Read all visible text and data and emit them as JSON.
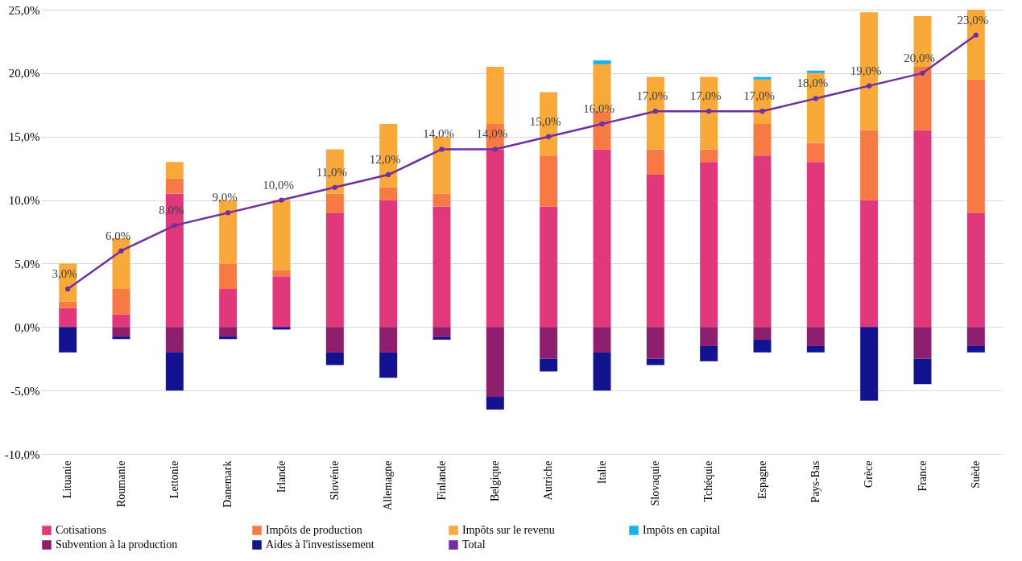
{
  "chart_data": {
    "type": "bar",
    "stacked": true,
    "grid": "y",
    "legend": "bottom",
    "categories": [
      "Lituanie",
      "Roumanie",
      "Lettonie",
      "Danemark",
      "Irlande",
      "Slovénie",
      "Allemagne",
      "Finlande",
      "Belgique",
      "Autriche",
      "Italie",
      "Slovaquie",
      "Tchéquie",
      "Espagne",
      "Pays-Bas",
      "Grèce",
      "France",
      "Suède"
    ],
    "series": [
      {
        "name": "Cotisations",
        "color": "#e0387a",
        "values": [
          1.5,
          1.0,
          10.5,
          3.0,
          4.0,
          9.0,
          10.0,
          9.5,
          14.0,
          9.5,
          14.0,
          12.0,
          13.0,
          13.5,
          13.0,
          10.0,
          15.5,
          9.0
        ]
      },
      {
        "name": "Impôts de production",
        "color": "#f77a45",
        "values": [
          0.5,
          2.0,
          1.2,
          2.0,
          0.5,
          1.5,
          1.0,
          1.0,
          2.0,
          4.0,
          3.0,
          2.0,
          1.0,
          2.5,
          1.5,
          5.5,
          5.0,
          10.5
        ]
      },
      {
        "name": "Impôts sur le revenu",
        "color": "#f9a93a",
        "values": [
          3.0,
          4.0,
          1.3,
          5.0,
          5.5,
          3.5,
          5.0,
          4.5,
          4.5,
          5.0,
          3.7,
          5.7,
          5.7,
          3.5,
          5.5,
          9.3,
          4.0,
          5.5
        ]
      },
      {
        "name": "Impôts en capital",
        "color": "#1ab0e8",
        "values": [
          0,
          0,
          0,
          0,
          0,
          0,
          0,
          0,
          0,
          0,
          0.3,
          0,
          0,
          0.2,
          0.2,
          0,
          0,
          0
        ]
      },
      {
        "name": "Subvention à la production",
        "color": "#8e1f6e",
        "values": [
          0,
          -0.75,
          -2.0,
          -0.75,
          0,
          -2.0,
          -2.0,
          -0.8,
          -5.5,
          -2.5,
          -2.0,
          -2.5,
          -1.5,
          -1.0,
          -1.5,
          0,
          -2.5,
          -1.5
        ]
      },
      {
        "name": "Aides à l'investissement",
        "color": "#13128f",
        "values": [
          -2.0,
          -0.2,
          -3.0,
          -0.2,
          -0.2,
          -1.0,
          -2.0,
          -0.2,
          -1.0,
          -1.0,
          -3.0,
          -0.5,
          -1.2,
          -1.0,
          -0.5,
          -5.8,
          -2.0,
          -0.5
        ]
      },
      {
        "name": "Total",
        "type": "line",
        "marker": "circle",
        "line_style": "solid",
        "color": "#7030a0",
        "values": [
          3,
          6,
          8,
          9,
          10,
          11,
          12,
          14,
          14,
          15,
          16,
          17,
          17,
          17,
          18,
          19,
          20,
          23
        ],
        "value_labels": [
          "3,0%",
          "6,0%",
          "8,0%",
          "9,0%",
          "10,0%",
          "11,0%",
          "12,0%",
          "14,0%",
          "14,0%",
          "15,0%",
          "16,0%",
          "17,0%",
          "17,0%",
          "17,0%",
          "18,0%",
          "19,0%",
          "20,0%",
          "23,0%"
        ]
      }
    ],
    "ylim": [
      -10,
      25
    ],
    "yticks": [
      {
        "value": -10,
        "label": "-10,0%"
      },
      {
        "value": -5,
        "label": "-5,0%"
      },
      {
        "value": 0,
        "label": "0,0%"
      },
      {
        "value": 5,
        "label": "5,0%"
      },
      {
        "value": 10,
        "label": "10,0%"
      },
      {
        "value": 15,
        "label": "15,0%"
      },
      {
        "value": 20,
        "label": "20,0%"
      },
      {
        "value": 25,
        "label": "25,0%"
      }
    ]
  }
}
